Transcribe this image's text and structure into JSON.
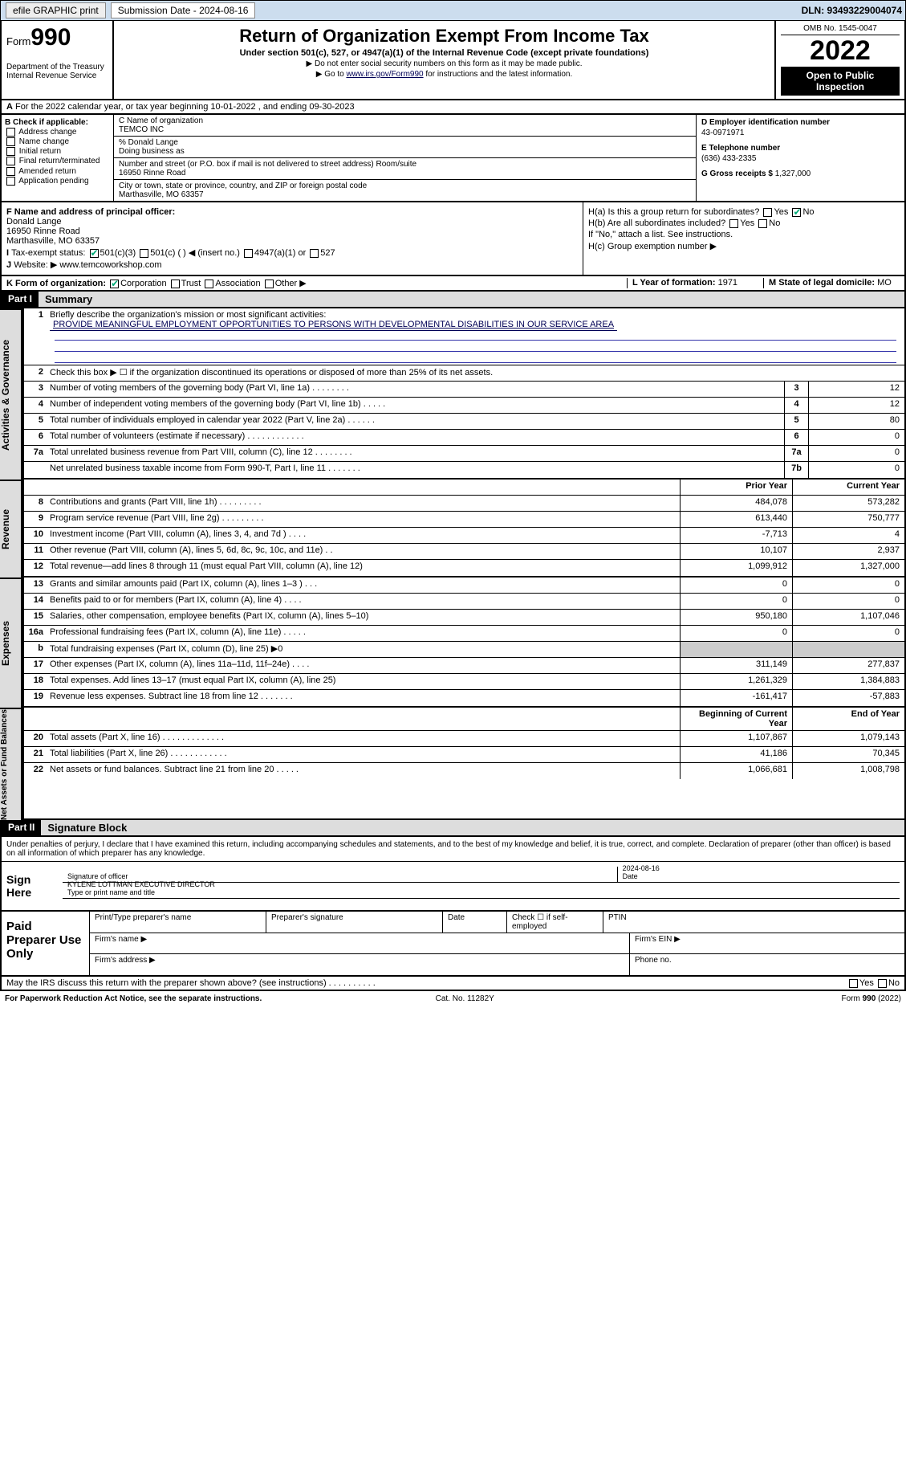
{
  "topbar": {
    "efile": "efile GRAPHIC print",
    "submission_label": "Submission Date - 2024-08-16",
    "dln": "DLN: 93493229004074"
  },
  "header": {
    "form_label": "Form",
    "form_no": "990",
    "dept": "Department of the Treasury\nInternal Revenue Service",
    "title": "Return of Organization Exempt From Income Tax",
    "subtitle": "Under section 501(c), 527, or 4947(a)(1) of the Internal Revenue Code (except private foundations)",
    "note1": "▶ Do not enter social security numbers on this form as it may be made public.",
    "note2_pre": "▶ Go to ",
    "note2_link": "www.irs.gov/Form990",
    "note2_post": " for instructions and the latest information.",
    "omb": "OMB No. 1545-0047",
    "year": "2022",
    "openpub": "Open to Public Inspection"
  },
  "lineA": "For the 2022 calendar year, or tax year beginning 10-01-2022  , and ending 09-30-2023",
  "colB": {
    "hd": "B Check if applicable:",
    "items": [
      "Address change",
      "Name change",
      "Initial return",
      "Final return/terminated",
      "Amended return",
      "Application pending"
    ]
  },
  "colC": {
    "name_lbl": "C Name of organization",
    "name": "TEMCO INC",
    "care": "% Donald Lange",
    "dba_lbl": "Doing business as",
    "street_lbl": "Number and street (or P.O. box if mail is not delivered to street address)    Room/suite",
    "street": "16950 Rinne Road",
    "city_lbl": "City or town, state or province, country, and ZIP or foreign postal code",
    "city": "Marthasville, MO  63357"
  },
  "colD": {
    "d_lbl": "D Employer identification number",
    "d_val": "43-0971971",
    "e_lbl": "E Telephone number",
    "e_val": "(636) 433-2335",
    "g_lbl": "G Gross receipts $",
    "g_val": "1,327,000"
  },
  "rowF": {
    "f_lbl": "F  Name and address of principal officer:",
    "f_val": "Donald Lange\n16950 Rinne Road\nMarthasville, MO  63357",
    "i_lbl": "Tax-exempt status:",
    "i_501c3": "501(c)(3)",
    "i_501c": "501(c) (  ) ◀ (insert no.)",
    "i_4947": "4947(a)(1) or",
    "i_527": "527",
    "j_lbl": "Website: ▶",
    "j_val": "www.temcoworkshop.com"
  },
  "rowH": {
    "ha": "H(a)  Is this a group return for subordinates?",
    "hb": "H(b)  Are all subordinates included?",
    "hb_note": "If \"No,\" attach a list. See instructions.",
    "hc": "H(c)  Group exemption number ▶",
    "yes": "Yes",
    "no": "No"
  },
  "rowK": {
    "k_lbl": "K Form of organization:",
    "corp": "Corporation",
    "trust": "Trust",
    "assoc": "Association",
    "other": "Other ▶",
    "l_lbl": "L Year of formation:",
    "l_val": "1971",
    "m_lbl": "M State of legal domicile:",
    "m_val": "MO"
  },
  "part1": {
    "bar": "Part I",
    "title": "Summary",
    "l1_lbl": "Briefly describe the organization's mission or most significant activities:",
    "l1_val": "PROVIDE MEANINGFUL EMPLOYMENT OPPORTUNITIES TO PERSONS WITH DEVELOPMENTAL DISABILITIES IN OUR SERVICE AREA",
    "l2": "Check this box ▶ ☐  if the organization discontinued its operations or disposed of more than 25% of its net assets.",
    "lines_gov": [
      {
        "n": "3",
        "d": "Number of voting members of the governing body (Part VI, line 1a)  .   .   .   .   .   .   .   .",
        "b": "3",
        "v": "12"
      },
      {
        "n": "4",
        "d": "Number of independent voting members of the governing body (Part VI, line 1b)  .   .   .   .   .",
        "b": "4",
        "v": "12"
      },
      {
        "n": "5",
        "d": "Total number of individuals employed in calendar year 2022 (Part V, line 2a)  .   .   .   .   .   .",
        "b": "5",
        "v": "80"
      },
      {
        "n": "6",
        "d": "Total number of volunteers (estimate if necessary)  .   .   .   .   .   .   .   .   .   .   .   .",
        "b": "6",
        "v": "0"
      },
      {
        "n": "7a",
        "d": "Total unrelated business revenue from Part VIII, column (C), line 12  .   .   .   .   .   .   .   .",
        "b": "7a",
        "v": "0"
      },
      {
        "n": " ",
        "d": "Net unrelated business taxable income from Form 990-T, Part I, line 11  .   .   .   .   .   .   .",
        "b": "7b",
        "v": "0"
      }
    ],
    "prior_lbl": "Prior Year",
    "curr_lbl": "Current Year",
    "lines_rev": [
      {
        "n": "8",
        "d": "Contributions and grants (Part VIII, line 1h)  .   .   .   .   .   .   .   .   .",
        "p": "484,078",
        "c": "573,282"
      },
      {
        "n": "9",
        "d": "Program service revenue (Part VIII, line 2g)  .   .   .   .   .   .   .   .   .",
        "p": "613,440",
        "c": "750,777"
      },
      {
        "n": "10",
        "d": "Investment income (Part VIII, column (A), lines 3, 4, and 7d )  .   .   .   .",
        "p": "-7,713",
        "c": "4"
      },
      {
        "n": "11",
        "d": "Other revenue (Part VIII, column (A), lines 5, 6d, 8c, 9c, 10c, and 11e)  .   .",
        "p": "10,107",
        "c": "2,937"
      },
      {
        "n": "12",
        "d": "Total revenue—add lines 8 through 11 (must equal Part VIII, column (A), line 12)",
        "p": "1,099,912",
        "c": "1,327,000"
      }
    ],
    "lines_exp": [
      {
        "n": "13",
        "d": "Grants and similar amounts paid (Part IX, column (A), lines 1–3 )  .   .   .",
        "p": "0",
        "c": "0"
      },
      {
        "n": "14",
        "d": "Benefits paid to or for members (Part IX, column (A), line 4)  .   .   .   .",
        "p": "0",
        "c": "0"
      },
      {
        "n": "15",
        "d": "Salaries, other compensation, employee benefits (Part IX, column (A), lines 5–10)",
        "p": "950,180",
        "c": "1,107,046"
      },
      {
        "n": "16a",
        "d": "Professional fundraising fees (Part IX, column (A), line 11e)  .   .   .   .   .",
        "p": "0",
        "c": "0"
      },
      {
        "n": "b",
        "d": "Total fundraising expenses (Part IX, column (D), line 25) ▶0",
        "p": "",
        "c": "",
        "grey": true
      },
      {
        "n": "17",
        "d": "Other expenses (Part IX, column (A), lines 11a–11d, 11f–24e)  .   .   .   .",
        "p": "311,149",
        "c": "277,837"
      },
      {
        "n": "18",
        "d": "Total expenses. Add lines 13–17 (must equal Part IX, column (A), line 25)",
        "p": "1,261,329",
        "c": "1,384,883"
      },
      {
        "n": "19",
        "d": "Revenue less expenses. Subtract line 18 from line 12  .   .   .   .   .   .   .",
        "p": "-161,417",
        "c": "-57,883"
      }
    ],
    "beg_lbl": "Beginning of Current Year",
    "end_lbl": "End of Year",
    "lines_net": [
      {
        "n": "20",
        "d": "Total assets (Part X, line 16)  .   .   .   .   .   .   .   .   .   .   .   .   .",
        "p": "1,107,867",
        "c": "1,079,143"
      },
      {
        "n": "21",
        "d": "Total liabilities (Part X, line 26)  .   .   .   .   .   .   .   .   .   .   .   .",
        "p": "41,186",
        "c": "70,345"
      },
      {
        "n": "22",
        "d": "Net assets or fund balances. Subtract line 21 from line 20  .   .   .   .   .",
        "p": "1,066,681",
        "c": "1,008,798"
      }
    ],
    "side_gov": "Activities & Governance",
    "side_rev": "Revenue",
    "side_exp": "Expenses",
    "side_net": "Net Assets or Fund Balances"
  },
  "part2": {
    "bar": "Part II",
    "title": "Signature Block",
    "declare": "Under penalties of perjury, I declare that I have examined this return, including accompanying schedules and statements, and to the best of my knowledge and belief, it is true, correct, and complete. Declaration of preparer (other than officer) is based on all information of which preparer has any knowledge.",
    "sign_here": "Sign Here",
    "sig_officer": "Signature of officer",
    "sig_date": "Date",
    "sig_date_val": "2024-08-16",
    "sig_name": "KYLENE LOTTMAN  EXECUTIVE DIRECTOR",
    "sig_name_lbl": "Type or print name and title"
  },
  "paid": {
    "lbl": "Paid Preparer Use Only",
    "h_name": "Print/Type preparer's name",
    "h_sig": "Preparer's signature",
    "h_date": "Date",
    "h_check": "Check ☐ if self-employed",
    "h_ptin": "PTIN",
    "firm_name": "Firm's name  ▶",
    "firm_ein": "Firm's EIN ▶",
    "firm_addr": "Firm's address ▶",
    "phone": "Phone no."
  },
  "bottom": {
    "discuss": "May the IRS discuss this return with the preparer shown above? (see instructions)  .   .   .   .   .   .   .   .   .   .",
    "yes": "Yes",
    "no": "No",
    "pra": "For Paperwork Reduction Act Notice, see the separate instructions.",
    "cat": "Cat. No. 11282Y",
    "form": "Form 990 (2022)"
  }
}
